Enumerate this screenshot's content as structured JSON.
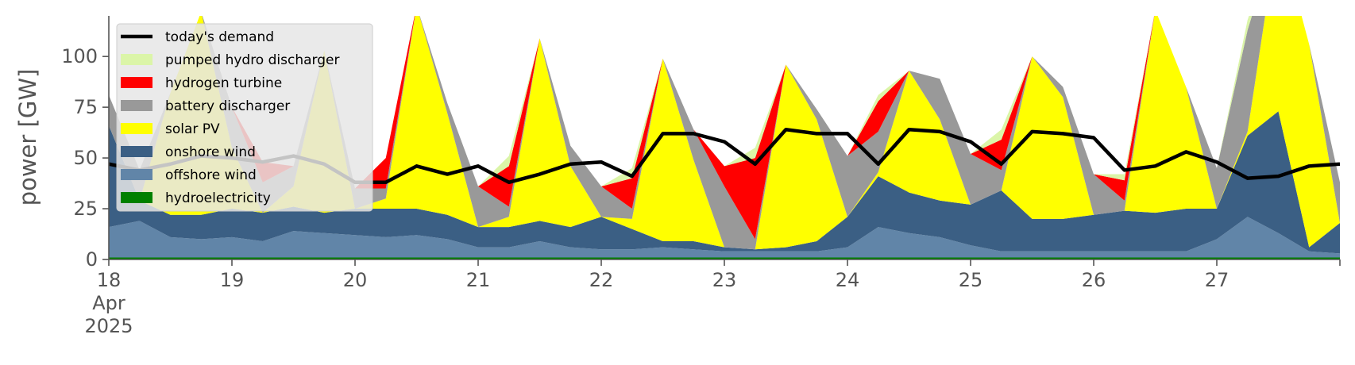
{
  "chart_data": {
    "type": "area",
    "ylabel": "power [GW]",
    "ylim": [
      0,
      120
    ],
    "yticks": [
      "0",
      "25",
      "50",
      "75",
      "100"
    ],
    "xlim": [
      "2025-04-18",
      "2025-04-28"
    ],
    "xticks": [
      {
        "x": "2025-04-18",
        "label": [
          "18",
          "Apr",
          "2025"
        ]
      },
      {
        "x": "2025-04-19",
        "label": [
          "19"
        ]
      },
      {
        "x": "2025-04-20",
        "label": [
          "20"
        ]
      },
      {
        "x": "2025-04-21",
        "label": [
          "21"
        ]
      },
      {
        "x": "2025-04-22",
        "label": [
          "22"
        ]
      },
      {
        "x": "2025-04-23",
        "label": [
          "23"
        ]
      },
      {
        "x": "2025-04-24",
        "label": [
          "24"
        ]
      },
      {
        "x": "2025-04-25",
        "label": [
          "25"
        ]
      },
      {
        "x": "2025-04-26",
        "label": [
          "26"
        ]
      },
      {
        "x": "2025-04-27",
        "label": [
          "27"
        ]
      }
    ],
    "grid": false,
    "legend_position": "top-left",
    "time_step_hours": 6,
    "x": [
      "2025-04-18 00:00",
      "2025-04-18 06:00",
      "2025-04-18 12:00",
      "2025-04-18 18:00",
      "2025-04-19 00:00",
      "2025-04-19 06:00",
      "2025-04-19 12:00",
      "2025-04-19 18:00",
      "2025-04-20 00:00",
      "2025-04-20 06:00",
      "2025-04-20 12:00",
      "2025-04-20 18:00",
      "2025-04-21 00:00",
      "2025-04-21 06:00",
      "2025-04-21 12:00",
      "2025-04-21 18:00",
      "2025-04-22 00:00",
      "2025-04-22 06:00",
      "2025-04-22 12:00",
      "2025-04-22 18:00",
      "2025-04-23 00:00",
      "2025-04-23 06:00",
      "2025-04-23 12:00",
      "2025-04-23 18:00",
      "2025-04-24 00:00",
      "2025-04-24 06:00",
      "2025-04-24 12:00",
      "2025-04-24 18:00",
      "2025-04-25 00:00",
      "2025-04-25 06:00",
      "2025-04-25 12:00",
      "2025-04-25 18:00",
      "2025-04-26 00:00",
      "2025-04-26 06:00",
      "2025-04-26 12:00",
      "2025-04-26 18:00",
      "2025-04-27 00:00",
      "2025-04-27 06:00",
      "2025-04-27 12:00",
      "2025-04-27 18:00",
      "2025-04-28 00:00"
    ],
    "series": [
      {
        "name": "hydroelectricity",
        "color": "#008000",
        "values": [
          1,
          1,
          1,
          1,
          1,
          1,
          1,
          1,
          1,
          1,
          1,
          1,
          1,
          1,
          1,
          1,
          1,
          1,
          1,
          1,
          1,
          1,
          1,
          1,
          1,
          1,
          1,
          1,
          1,
          1,
          1,
          1,
          1,
          1,
          1,
          1,
          1,
          1,
          1,
          1,
          1
        ]
      },
      {
        "name": "offshore wind",
        "color": "#6185a8",
        "values": [
          15,
          18,
          10,
          9,
          10,
          8,
          13,
          12,
          11,
          10,
          11,
          9,
          5,
          5,
          8,
          5,
          4,
          4,
          5,
          4,
          3,
          3,
          3,
          3,
          5,
          15,
          12,
          10,
          6,
          3,
          3,
          3,
          3,
          3,
          3,
          3,
          9,
          20,
          12,
          3,
          2
        ]
      },
      {
        "name": "onshore wind",
        "color": "#3b5f84",
        "values": [
          50,
          10,
          11,
          12,
          14,
          14,
          12,
          10,
          13,
          14,
          13,
          12,
          10,
          10,
          10,
          10,
          16,
          10,
          3,
          4,
          2,
          1,
          2,
          5,
          15,
          25,
          20,
          18,
          20,
          30,
          16,
          16,
          18,
          20,
          19,
          21,
          15,
          40,
          60,
          2,
          15
        ]
      },
      {
        "name": "solar PV",
        "color": "#ffff00",
        "values": [
          0,
          0,
          60,
          100,
          30,
          0,
          10,
          80,
          0,
          5,
          100,
          50,
          0,
          5,
          90,
          30,
          0,
          5,
          90,
          40,
          0,
          0,
          90,
          60,
          0,
          2,
          60,
          40,
          0,
          0,
          80,
          60,
          0,
          0,
          100,
          60,
          0,
          2,
          90,
          100,
          0
        ]
      },
      {
        "name": "battery discharger",
        "color": "#999999",
        "values": [
          15,
          15,
          0,
          0,
          20,
          15,
          10,
          0,
          10,
          5,
          0,
          5,
          20,
          5,
          0,
          10,
          15,
          5,
          0,
          15,
          30,
          5,
          0,
          5,
          30,
          20,
          0,
          20,
          25,
          10,
          0,
          5,
          20,
          5,
          0,
          0,
          20,
          50,
          0,
          0,
          20
        ]
      },
      {
        "name": "hydrogen turbine",
        "color": "#ff0000",
        "values": [
          0,
          0,
          0,
          0,
          0,
          10,
          0,
          0,
          0,
          15,
          0,
          0,
          0,
          20,
          0,
          0,
          0,
          15,
          0,
          0,
          10,
          40,
          0,
          0,
          0,
          15,
          0,
          0,
          0,
          15,
          0,
          0,
          0,
          10,
          0,
          0,
          0,
          0,
          0,
          0,
          0
        ]
      },
      {
        "name": "pumped hydro discharger",
        "color": "#dbf5a8",
        "values": [
          0,
          0,
          0,
          0,
          0,
          0,
          0,
          0,
          0,
          0,
          0,
          0,
          0,
          5,
          0,
          0,
          0,
          5,
          0,
          0,
          0,
          5,
          0,
          0,
          0,
          3,
          0,
          0,
          0,
          5,
          0,
          0,
          0,
          3,
          0,
          0,
          0,
          5,
          0,
          0,
          0
        ]
      }
    ],
    "demand": {
      "name": "today's demand",
      "color": "#000000",
      "values": [
        47,
        44,
        47,
        51,
        50,
        48,
        51,
        47,
        38,
        38,
        46,
        42,
        46,
        38,
        42,
        47,
        48,
        41,
        62,
        62,
        58,
        47,
        64,
        62,
        62,
        47,
        64,
        63,
        58,
        47,
        63,
        62,
        60,
        44,
        46,
        53,
        48,
        40,
        41,
        46,
        47
      ]
    }
  }
}
